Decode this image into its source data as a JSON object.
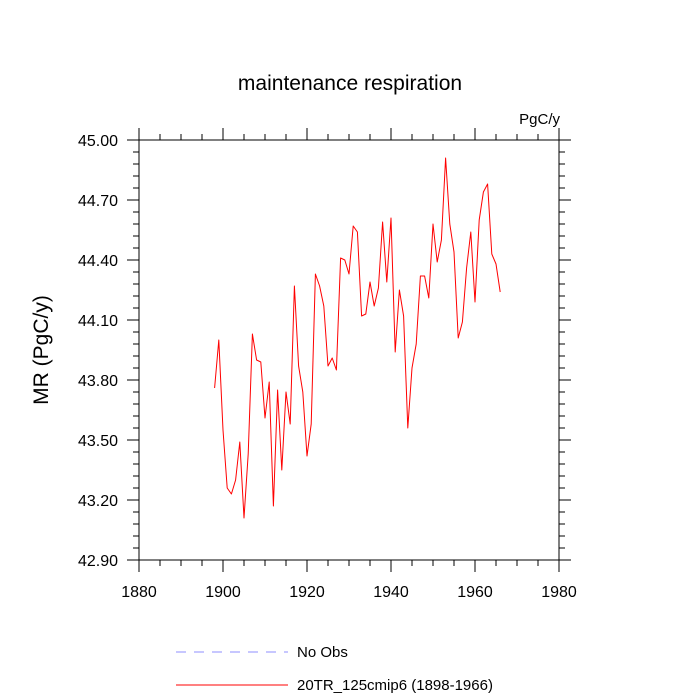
{
  "chart_data": {
    "type": "line",
    "title": "maintenance respiration",
    "units": "PgC/y",
    "xlabel": "",
    "ylabel": "MR  (PgC/y)",
    "xlim": [
      1880,
      1980
    ],
    "ylim": [
      42.9,
      45.0
    ],
    "xticks": [
      1880,
      1900,
      1920,
      1940,
      1960,
      1980
    ],
    "xtick_labels": [
      "1880",
      "1900",
      "1920",
      "1940",
      "1960",
      "1980"
    ],
    "yticks": [
      42.9,
      43.2,
      43.5,
      43.8,
      44.1,
      44.4,
      44.7,
      45.0
    ],
    "ytick_labels": [
      "42.90",
      "43.20",
      "43.50",
      "43.80",
      "44.10",
      "44.40",
      "44.70",
      "45.00"
    ],
    "legend_position": "bottom",
    "legend": [
      {
        "label": "No Obs",
        "color": "#8f8fff",
        "style": "dashed"
      },
      {
        "label": "20TR_125cmip6 (1898-1966)",
        "color": "#ff0000",
        "style": "solid"
      }
    ],
    "series": [
      {
        "name": "20TR_125cmip6 (1898-1966)",
        "color": "#ff0000",
        "x": [
          1898,
          1899,
          1900,
          1901,
          1902,
          1903,
          1904,
          1905,
          1906,
          1907,
          1908,
          1909,
          1910,
          1911,
          1912,
          1913,
          1914,
          1915,
          1916,
          1917,
          1918,
          1919,
          1920,
          1921,
          1922,
          1923,
          1924,
          1925,
          1926,
          1927,
          1928,
          1929,
          1930,
          1931,
          1932,
          1933,
          1934,
          1935,
          1936,
          1937,
          1938,
          1939,
          1940,
          1941,
          1942,
          1943,
          1944,
          1945,
          1946,
          1947,
          1948,
          1949,
          1950,
          1951,
          1952,
          1953,
          1954,
          1955,
          1956,
          1957,
          1958,
          1959,
          1960,
          1961,
          1962,
          1963,
          1964,
          1965,
          1966
        ],
        "values": [
          43.76,
          44.0,
          43.55,
          43.26,
          43.23,
          43.3,
          43.49,
          43.11,
          43.43,
          44.03,
          43.9,
          43.89,
          43.61,
          43.79,
          43.17,
          43.75,
          43.35,
          43.74,
          43.58,
          44.27,
          43.87,
          43.74,
          43.42,
          43.58,
          44.33,
          44.27,
          44.17,
          43.87,
          43.91,
          43.85,
          44.41,
          44.4,
          44.33,
          44.57,
          44.54,
          44.12,
          44.13,
          44.29,
          44.17,
          44.26,
          44.59,
          44.29,
          44.61,
          43.94,
          44.25,
          44.12,
          43.56,
          43.86,
          43.98,
          44.32,
          44.32,
          44.21,
          44.58,
          44.39,
          44.5,
          44.91,
          44.58,
          44.44,
          44.01,
          44.09,
          44.36,
          44.54,
          44.19,
          44.6,
          44.74,
          44.78,
          44.43,
          44.38,
          44.24
        ]
      }
    ]
  }
}
